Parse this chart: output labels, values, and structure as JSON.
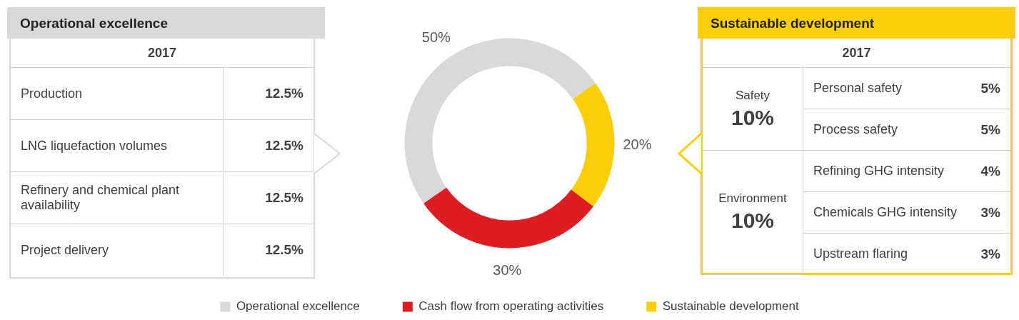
{
  "chart_data": [
    {
      "type": "other",
      "title": "Operational excellence",
      "subtitle": "2017",
      "annotations": [
        "Production",
        "12.5%",
        "LNG liquefaction volumes",
        "12.5%",
        "Refinery and chemical plant availability",
        "12.5%",
        "Project delivery",
        "12.5%"
      ]
    },
    {
      "type": "donut",
      "categories": [
        "Operational excellence",
        "Cash flow from operating activities",
        "Sustainable development"
      ],
      "values": [
        50,
        30,
        20
      ],
      "colors": [
        "#d9d9d9",
        "#dd1d21",
        "#fbce07"
      ],
      "value_labels": [
        "50%",
        "30%",
        "20%"
      ],
      "legend": "bottom"
    },
    {
      "type": "other",
      "title": "Sustainable development",
      "subtitle": "2017",
      "annotations": [
        "Safety",
        "10%",
        "Personal safety",
        "5%",
        "Process safety",
        "5%",
        "Environment",
        "10%",
        "Refining GHG intensity",
        "4%",
        "Chemicals GHG intensity",
        "3%",
        "Upstream flaring",
        "3%"
      ]
    }
  ]
}
